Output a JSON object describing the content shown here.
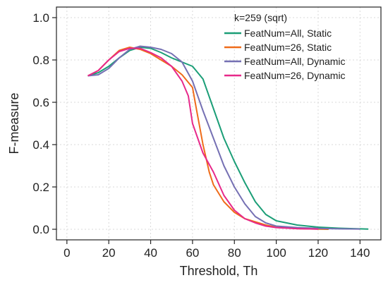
{
  "chart_data": {
    "type": "line",
    "xlabel": "Threshold, Th",
    "ylabel": "F-measure",
    "xlim": [
      -5,
      150
    ],
    "ylim": [
      -0.05,
      1.05
    ],
    "x_ticks": [
      0,
      20,
      40,
      60,
      80,
      100,
      120,
      140
    ],
    "y_ticks": [
      0.0,
      0.2,
      0.4,
      0.6,
      0.8,
      1.0
    ],
    "x_tick_labels": [
      "0",
      "20",
      "40",
      "60",
      "80",
      "100",
      "120",
      "140"
    ],
    "y_tick_labels": [
      "0.0",
      "0.2",
      "0.4",
      "0.6",
      "0.8",
      "1.0"
    ],
    "grid": true,
    "legend": {
      "title": "k=259 (sqrt)",
      "position": "top-right"
    },
    "series": [
      {
        "name": "FeatNum=All, Static",
        "color": "#1b9e77",
        "x": [
          10,
          15,
          20,
          25,
          30,
          35,
          40,
          45,
          50,
          55,
          60,
          65,
          70,
          75,
          80,
          85,
          90,
          95,
          100,
          110,
          120,
          130,
          140,
          144
        ],
        "y": [
          0.725,
          0.74,
          0.77,
          0.81,
          0.845,
          0.86,
          0.855,
          0.835,
          0.81,
          0.79,
          0.77,
          0.71,
          0.57,
          0.43,
          0.32,
          0.22,
          0.13,
          0.07,
          0.04,
          0.02,
          0.01,
          0.005,
          0.002,
          0.001
        ]
      },
      {
        "name": "FeatNum=26, Static",
        "color": "#ef6c1a",
        "x": [
          10,
          15,
          20,
          25,
          30,
          35,
          40,
          45,
          50,
          55,
          60,
          62,
          65,
          68,
          70,
          75,
          80,
          85,
          90,
          95,
          100,
          110,
          120,
          125
        ],
        "y": [
          0.725,
          0.75,
          0.8,
          0.845,
          0.86,
          0.85,
          0.83,
          0.8,
          0.77,
          0.73,
          0.67,
          0.56,
          0.4,
          0.27,
          0.21,
          0.13,
          0.08,
          0.05,
          0.035,
          0.02,
          0.01,
          0.003,
          0.001,
          0.0
        ]
      },
      {
        "name": "FeatNum=All, Dynamic",
        "color": "#7570b3",
        "x": [
          10,
          15,
          20,
          25,
          30,
          35,
          40,
          45,
          50,
          55,
          60,
          65,
          70,
          75,
          80,
          85,
          90,
          95,
          100,
          110,
          120,
          130,
          140
        ],
        "y": [
          0.725,
          0.73,
          0.76,
          0.81,
          0.85,
          0.865,
          0.86,
          0.85,
          0.83,
          0.79,
          0.7,
          0.56,
          0.43,
          0.3,
          0.2,
          0.12,
          0.06,
          0.03,
          0.015,
          0.008,
          0.004,
          0.002,
          0.001
        ]
      },
      {
        "name": "FeatNum=26, Dynamic",
        "color": "#e7298a",
        "x": [
          10,
          15,
          20,
          25,
          30,
          35,
          40,
          45,
          50,
          55,
          58,
          60,
          65,
          70,
          75,
          80,
          85,
          90,
          95,
          100,
          110,
          120
        ],
        "y": [
          0.725,
          0.75,
          0.8,
          0.84,
          0.855,
          0.855,
          0.835,
          0.81,
          0.77,
          0.7,
          0.63,
          0.5,
          0.36,
          0.27,
          0.16,
          0.09,
          0.05,
          0.03,
          0.015,
          0.008,
          0.003,
          0.001
        ]
      }
    ]
  }
}
